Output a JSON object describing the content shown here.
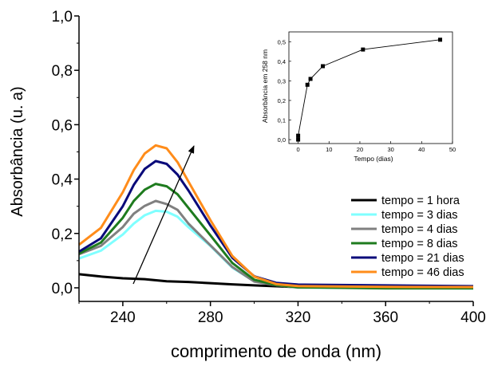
{
  "chart_data": [
    {
      "type": "line",
      "xlabel": "comprimento de onda (nm)",
      "ylabel": "Absorbância (u. a)",
      "xlim": [
        220,
        400
      ],
      "ylim": [
        -0.05,
        1.0
      ],
      "x_ticks": [
        240,
        280,
        320,
        360,
        400
      ],
      "y_ticks": [
        0.0,
        0.2,
        0.4,
        0.6,
        0.8,
        1.0
      ],
      "x_tick_labels": [
        "240",
        "280",
        "320",
        "360",
        "400"
      ],
      "y_tick_labels": [
        "0,0",
        "0,2",
        "0,4",
        "0,6",
        "0,8",
        "1,0"
      ],
      "legend_position": "lower-right",
      "annotation": "arrow indicating increasing time",
      "series": [
        {
          "name": "tempo = 1 hora",
          "color": "#000000",
          "x": [
            220,
            230,
            240,
            250,
            260,
            270,
            280,
            290,
            300,
            320,
            340,
            360,
            380,
            400
          ],
          "y": [
            0.05,
            0.04,
            0.032,
            0.028,
            0.02,
            0.018,
            0.015,
            0.012,
            0.01,
            0.005,
            0.004,
            0.003,
            0.002,
            0.002
          ]
        },
        {
          "name": "tempo = 3 dias",
          "color": "#7FFFFF",
          "x": [
            220,
            230,
            240,
            245,
            250,
            255,
            260,
            265,
            270,
            280,
            290,
            300,
            310,
            320,
            360,
            400
          ],
          "y": [
            0.11,
            0.14,
            0.2,
            0.24,
            0.27,
            0.285,
            0.28,
            0.26,
            0.22,
            0.15,
            0.07,
            0.02,
            0.008,
            0.0,
            0.0,
            0.0
          ]
        },
        {
          "name": "tempo = 4 dias",
          "color": "#808080",
          "x": [
            220,
            230,
            240,
            245,
            250,
            255,
            260,
            265,
            270,
            280,
            290,
            300,
            310,
            320,
            360,
            400
          ],
          "y": [
            0.12,
            0.15,
            0.22,
            0.27,
            0.3,
            0.32,
            0.31,
            0.29,
            0.24,
            0.16,
            0.08,
            0.025,
            0.01,
            0.0,
            0.0,
            0.0
          ]
        },
        {
          "name": "tempo = 8 dias",
          "color": "#1E7B1E",
          "x": [
            220,
            230,
            240,
            245,
            250,
            255,
            260,
            265,
            270,
            280,
            290,
            300,
            310,
            320,
            360,
            400
          ],
          "y": [
            0.13,
            0.17,
            0.26,
            0.32,
            0.36,
            0.38,
            0.37,
            0.34,
            0.29,
            0.19,
            0.09,
            0.03,
            0.012,
            0.005,
            0.002,
            0.002
          ]
        },
        {
          "name": "tempo = 21 dias",
          "color": "#0A0A7A",
          "x": [
            220,
            230,
            240,
            245,
            250,
            255,
            260,
            265,
            270,
            280,
            290,
            300,
            310,
            320,
            360,
            400
          ],
          "y": [
            0.13,
            0.18,
            0.3,
            0.38,
            0.44,
            0.47,
            0.46,
            0.42,
            0.36,
            0.23,
            0.11,
            0.04,
            0.015,
            0.008,
            0.005,
            0.003
          ]
        },
        {
          "name": "tempo = 46 dias",
          "color": "#FF8C1A",
          "x": [
            220,
            230,
            240,
            245,
            250,
            255,
            260,
            265,
            270,
            280,
            290,
            300,
            310,
            320,
            360,
            400
          ],
          "y": [
            0.16,
            0.22,
            0.35,
            0.43,
            0.49,
            0.52,
            0.51,
            0.46,
            0.39,
            0.25,
            0.12,
            0.045,
            0.018,
            0.01,
            0.006,
            0.004
          ]
        }
      ]
    },
    {
      "type": "line",
      "subtype": "inset",
      "xlabel": "Tempo (dias)",
      "ylabel": "Absorbância em 258 nm",
      "xlim": [
        -3,
        50
      ],
      "ylim": [
        -0.02,
        0.55
      ],
      "x_ticks": [
        0,
        10,
        20,
        30,
        40,
        50
      ],
      "y_ticks": [
        0.0,
        0.1,
        0.2,
        0.3,
        0.4,
        0.5
      ],
      "x_tick_labels": [
        "0",
        "10",
        "20",
        "30",
        "40",
        "50"
      ],
      "y_tick_labels": [
        "0,0",
        "0,1",
        "0,2",
        "0,3",
        "0,4",
        "0,5"
      ],
      "series": [
        {
          "x": [
            0,
            0,
            3,
            4,
            8,
            21,
            46
          ],
          "y": [
            0.0,
            0.02,
            0.28,
            0.31,
            0.375,
            0.46,
            0.51
          ],
          "marker": "square"
        }
      ]
    }
  ]
}
